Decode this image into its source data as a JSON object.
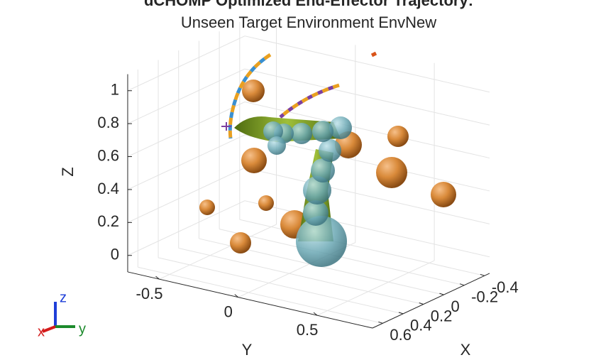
{
  "chart_data": {
    "type": "scatter3d",
    "title": "dCHOMP Optimized End-Effector Trajectory:",
    "subtitle": "Unseen Target Environment EnvNew",
    "xlabel": "X",
    "ylabel": "Y",
    "zlabel": "Z",
    "xlim": [
      -0.45,
      0.7
    ],
    "ylim": [
      -0.7,
      0.85
    ],
    "zlim": [
      -0.1,
      1.1
    ],
    "xticks": [
      -0.4,
      -0.2,
      0,
      0.2,
      0.4,
      0.6
    ],
    "yticks": [
      -0.5,
      0,
      0.5
    ],
    "zticks": [
      0,
      0.2,
      0.4,
      0.6,
      0.8,
      1
    ],
    "grid": true,
    "triad": {
      "x": "x",
      "y": "y",
      "z": "z"
    }
  }
}
